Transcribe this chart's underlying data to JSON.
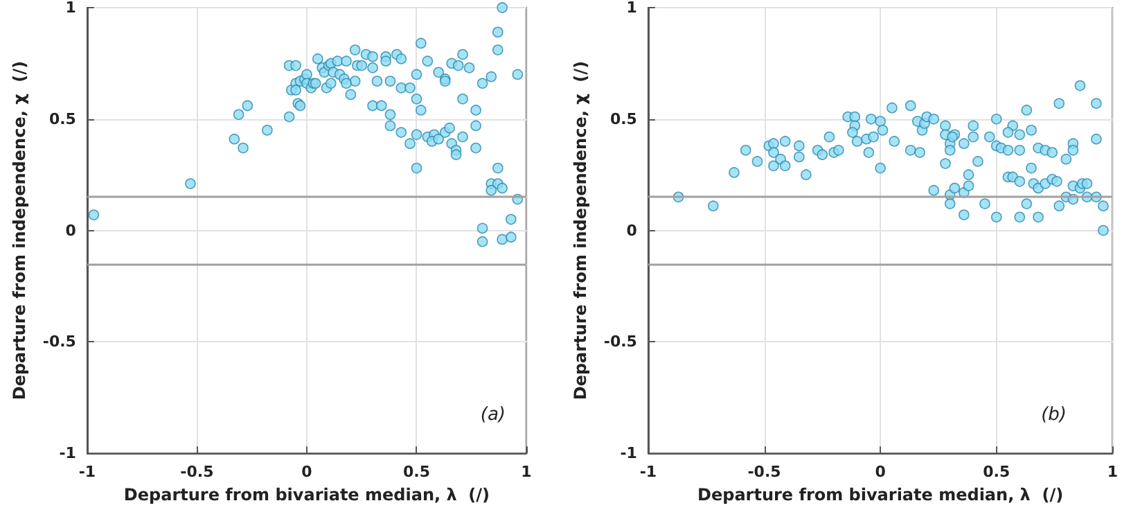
{
  "chart_data": [
    {
      "type": "scatter",
      "xlabel": "Departure from bivariate median, λ  (/)",
      "ylabel": "Departure from independence, χ  (/)",
      "annotations": [
        "(a)"
      ],
      "color": "#8fdcf4",
      "marker": "circle",
      "grid": true,
      "xlim": [
        -1,
        1
      ],
      "ylim": [
        -1,
        1
      ],
      "xticks": [
        -1,
        -0.5,
        0,
        0.5,
        1
      ],
      "yticks": [
        -1,
        -0.5,
        0,
        0.5,
        1
      ],
      "ref_lines": [
        {
          "axis": "y",
          "value": 0.15,
          "color": "#a0a0a0"
        },
        {
          "axis": "y",
          "value": -0.15,
          "color": "#a0a0a0"
        }
      ],
      "x": [
        -0.97,
        -0.53,
        -0.33,
        -0.29,
        -0.31,
        -0.27,
        -0.18,
        -0.08,
        -0.08,
        -0.05,
        -0.04,
        -0.03,
        -0.07,
        -0.05,
        -0.05,
        -0.03,
        -0.01,
        0.0,
        0.0,
        0.02,
        0.03,
        0.04,
        0.05,
        0.07,
        0.08,
        0.1,
        0.11,
        0.14,
        0.12,
        0.09,
        0.11,
        0.15,
        0.17,
        0.18,
        0.2,
        0.22,
        0.23,
        0.25,
        0.22,
        0.18,
        0.27,
        0.3,
        0.3,
        0.32,
        0.36,
        0.36,
        0.41,
        0.43,
        0.38,
        0.43,
        0.47,
        0.52,
        0.55,
        0.5,
        0.6,
        0.63,
        0.63,
        0.66,
        0.69,
        0.71,
        0.74,
        0.71,
        0.77,
        0.8,
        0.84,
        0.87,
        0.87,
        0.89,
        0.96,
        0.3,
        0.34,
        0.38,
        0.38,
        0.43,
        0.47,
        0.5,
        0.5,
        0.52,
        0.55,
        0.58,
        0.57,
        0.6,
        0.63,
        0.65,
        0.66,
        0.68,
        0.68,
        0.71,
        0.77,
        0.77,
        0.5,
        0.87,
        0.84,
        0.87,
        0.84,
        0.89,
        0.96,
        0.8,
        0.93,
        0.8,
        0.89,
        0.93
      ],
      "values": [
        0.07,
        0.21,
        0.41,
        0.37,
        0.52,
        0.56,
        0.45,
        0.51,
        0.74,
        0.74,
        0.57,
        0.56,
        0.63,
        0.66,
        0.63,
        0.67,
        0.68,
        0.7,
        0.66,
        0.64,
        0.66,
        0.66,
        0.77,
        0.73,
        0.71,
        0.74,
        0.75,
        0.76,
        0.71,
        0.64,
        0.66,
        0.7,
        0.68,
        0.76,
        0.61,
        0.81,
        0.74,
        0.74,
        0.67,
        0.66,
        0.79,
        0.78,
        0.73,
        0.67,
        0.78,
        0.76,
        0.79,
        0.77,
        0.67,
        0.64,
        0.64,
        0.84,
        0.76,
        0.7,
        0.71,
        0.68,
        0.67,
        0.75,
        0.74,
        0.79,
        0.73,
        0.59,
        0.54,
        0.66,
        0.69,
        0.81,
        0.89,
        1.0,
        0.7,
        0.56,
        0.56,
        0.52,
        0.47,
        0.44,
        0.39,
        0.43,
        0.59,
        0.54,
        0.42,
        0.43,
        0.4,
        0.41,
        0.44,
        0.46,
        0.39,
        0.36,
        0.34,
        0.42,
        0.47,
        0.37,
        0.28,
        0.28,
        0.21,
        0.21,
        0.18,
        0.19,
        0.14,
        0.01,
        0.05,
        -0.05,
        -0.04,
        -0.03
      ]
    },
    {
      "type": "scatter",
      "xlabel": "Departure from bivariate median, λ  (/)",
      "ylabel": "Departure from independence, χ  (/)",
      "annotations": [
        "(b)"
      ],
      "color": "#8fdcf4",
      "marker": "circle",
      "grid": true,
      "xlim": [
        -1,
        1
      ],
      "ylim": [
        -1,
        1
      ],
      "xticks": [
        -1,
        -0.5,
        0,
        0.5,
        1
      ],
      "yticks": [
        -1,
        -0.5,
        0,
        0.5,
        1
      ],
      "ref_lines": [
        {
          "axis": "y",
          "value": 0.15,
          "color": "#a0a0a0"
        },
        {
          "axis": "y",
          "value": -0.15,
          "color": "#a0a0a0"
        }
      ],
      "x": [
        -0.87,
        -0.72,
        -0.63,
        -0.58,
        -0.53,
        -0.48,
        -0.46,
        -0.46,
        -0.43,
        -0.46,
        -0.41,
        -0.41,
        -0.35,
        -0.35,
        -0.32,
        -0.27,
        -0.25,
        -0.22,
        -0.2,
        -0.18,
        -0.14,
        -0.11,
        -0.11,
        -0.12,
        -0.1,
        -0.06,
        -0.03,
        -0.05,
        -0.04,
        0.0,
        0.01,
        0.0,
        0.05,
        0.06,
        0.13,
        0.13,
        0.17,
        0.16,
        0.18,
        0.19,
        0.2,
        0.23,
        0.23,
        0.28,
        0.28,
        0.3,
        0.3,
        0.32,
        0.31,
        0.36,
        0.28,
        0.3,
        0.3,
        0.32,
        0.36,
        0.38,
        0.38,
        0.4,
        0.4,
        0.42,
        0.36,
        0.45,
        0.47,
        0.5,
        0.5,
        0.52,
        0.5,
        0.55,
        0.55,
        0.57,
        0.55,
        0.57,
        0.6,
        0.6,
        0.6,
        0.6,
        0.63,
        0.63,
        0.65,
        0.65,
        0.66,
        0.68,
        0.68,
        0.68,
        0.71,
        0.71,
        0.74,
        0.74,
        0.76,
        0.77,
        0.77,
        0.8,
        0.8,
        0.83,
        0.83,
        0.83,
        0.83,
        0.86,
        0.86,
        0.87,
        0.89,
        0.89,
        0.93,
        0.93,
        0.93,
        0.96,
        0.96
      ],
      "values": [
        0.15,
        0.11,
        0.26,
        0.36,
        0.31,
        0.38,
        0.39,
        0.35,
        0.32,
        0.29,
        0.29,
        0.4,
        0.38,
        0.33,
        0.25,
        0.36,
        0.34,
        0.42,
        0.35,
        0.36,
        0.51,
        0.51,
        0.47,
        0.44,
        0.4,
        0.41,
        0.42,
        0.35,
        0.5,
        0.49,
        0.45,
        0.28,
        0.55,
        0.4,
        0.56,
        0.36,
        0.35,
        0.49,
        0.45,
        0.48,
        0.51,
        0.5,
        0.18,
        0.47,
        0.43,
        0.39,
        0.36,
        0.43,
        0.42,
        0.39,
        0.3,
        0.16,
        0.12,
        0.19,
        0.17,
        0.2,
        0.25,
        0.47,
        0.42,
        0.31,
        0.07,
        0.12,
        0.42,
        0.5,
        0.38,
        0.37,
        0.06,
        0.36,
        0.24,
        0.47,
        0.44,
        0.24,
        0.43,
        0.36,
        0.22,
        0.06,
        0.54,
        0.12,
        0.45,
        0.28,
        0.21,
        0.37,
        0.19,
        0.06,
        0.36,
        0.21,
        0.35,
        0.23,
        0.22,
        0.57,
        0.11,
        0.32,
        0.15,
        0.39,
        0.36,
        0.2,
        0.14,
        0.65,
        0.19,
        0.21,
        0.21,
        0.15,
        0.57,
        0.41,
        0.15,
        0.11,
        0.0
      ]
    }
  ]
}
